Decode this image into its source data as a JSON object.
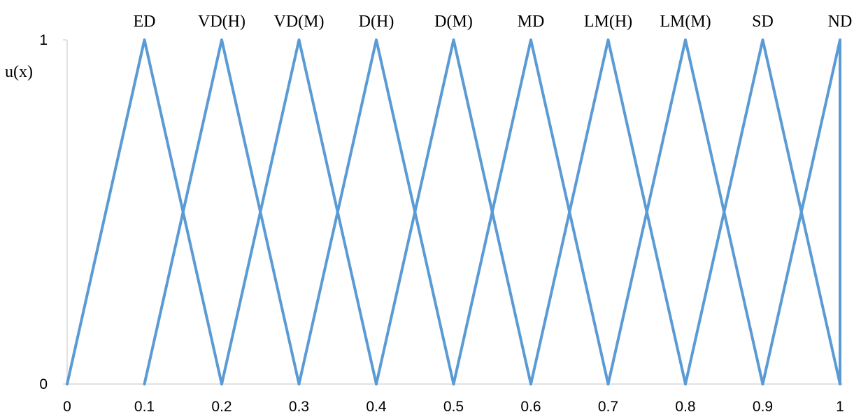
{
  "chart_data": {
    "type": "line",
    "title": "",
    "xlabel": "",
    "ylabel": "u(x)",
    "xlim": [
      0,
      1
    ],
    "ylim": [
      0,
      1
    ],
    "x_ticks": [
      "0",
      "0.1",
      "0.2",
      "0.3",
      "0.4",
      "0.5",
      "0.6",
      "0.7",
      "0.8",
      "0.9",
      "1"
    ],
    "y_ticks": [
      "0",
      "1"
    ],
    "grid": false,
    "line_color": "#5B9BD5",
    "series": [
      {
        "name": "ED",
        "x": [
          0.0,
          0.1,
          0.2
        ],
        "y": [
          0,
          1,
          0
        ]
      },
      {
        "name": "VD(H)",
        "x": [
          0.1,
          0.2,
          0.3
        ],
        "y": [
          0,
          1,
          0
        ]
      },
      {
        "name": "VD(M)",
        "x": [
          0.2,
          0.3,
          0.4
        ],
        "y": [
          0,
          1,
          0
        ]
      },
      {
        "name": "D(H)",
        "x": [
          0.3,
          0.4,
          0.5
        ],
        "y": [
          0,
          1,
          0
        ]
      },
      {
        "name": "D(M)",
        "x": [
          0.4,
          0.5,
          0.6
        ],
        "y": [
          0,
          1,
          0
        ]
      },
      {
        "name": "MD",
        "x": [
          0.5,
          0.6,
          0.7
        ],
        "y": [
          0,
          1,
          0
        ]
      },
      {
        "name": "LM(H)",
        "x": [
          0.6,
          0.7,
          0.8
        ],
        "y": [
          0,
          1,
          0
        ]
      },
      {
        "name": "LM(M)",
        "x": [
          0.7,
          0.8,
          0.9
        ],
        "y": [
          0,
          1,
          0
        ]
      },
      {
        "name": "SD",
        "x": [
          0.8,
          0.9,
          1.0
        ],
        "y": [
          0,
          1,
          0
        ]
      },
      {
        "name": "ND",
        "x": [
          0.9,
          1.0,
          1.0
        ],
        "y": [
          0,
          1,
          0
        ]
      }
    ]
  }
}
